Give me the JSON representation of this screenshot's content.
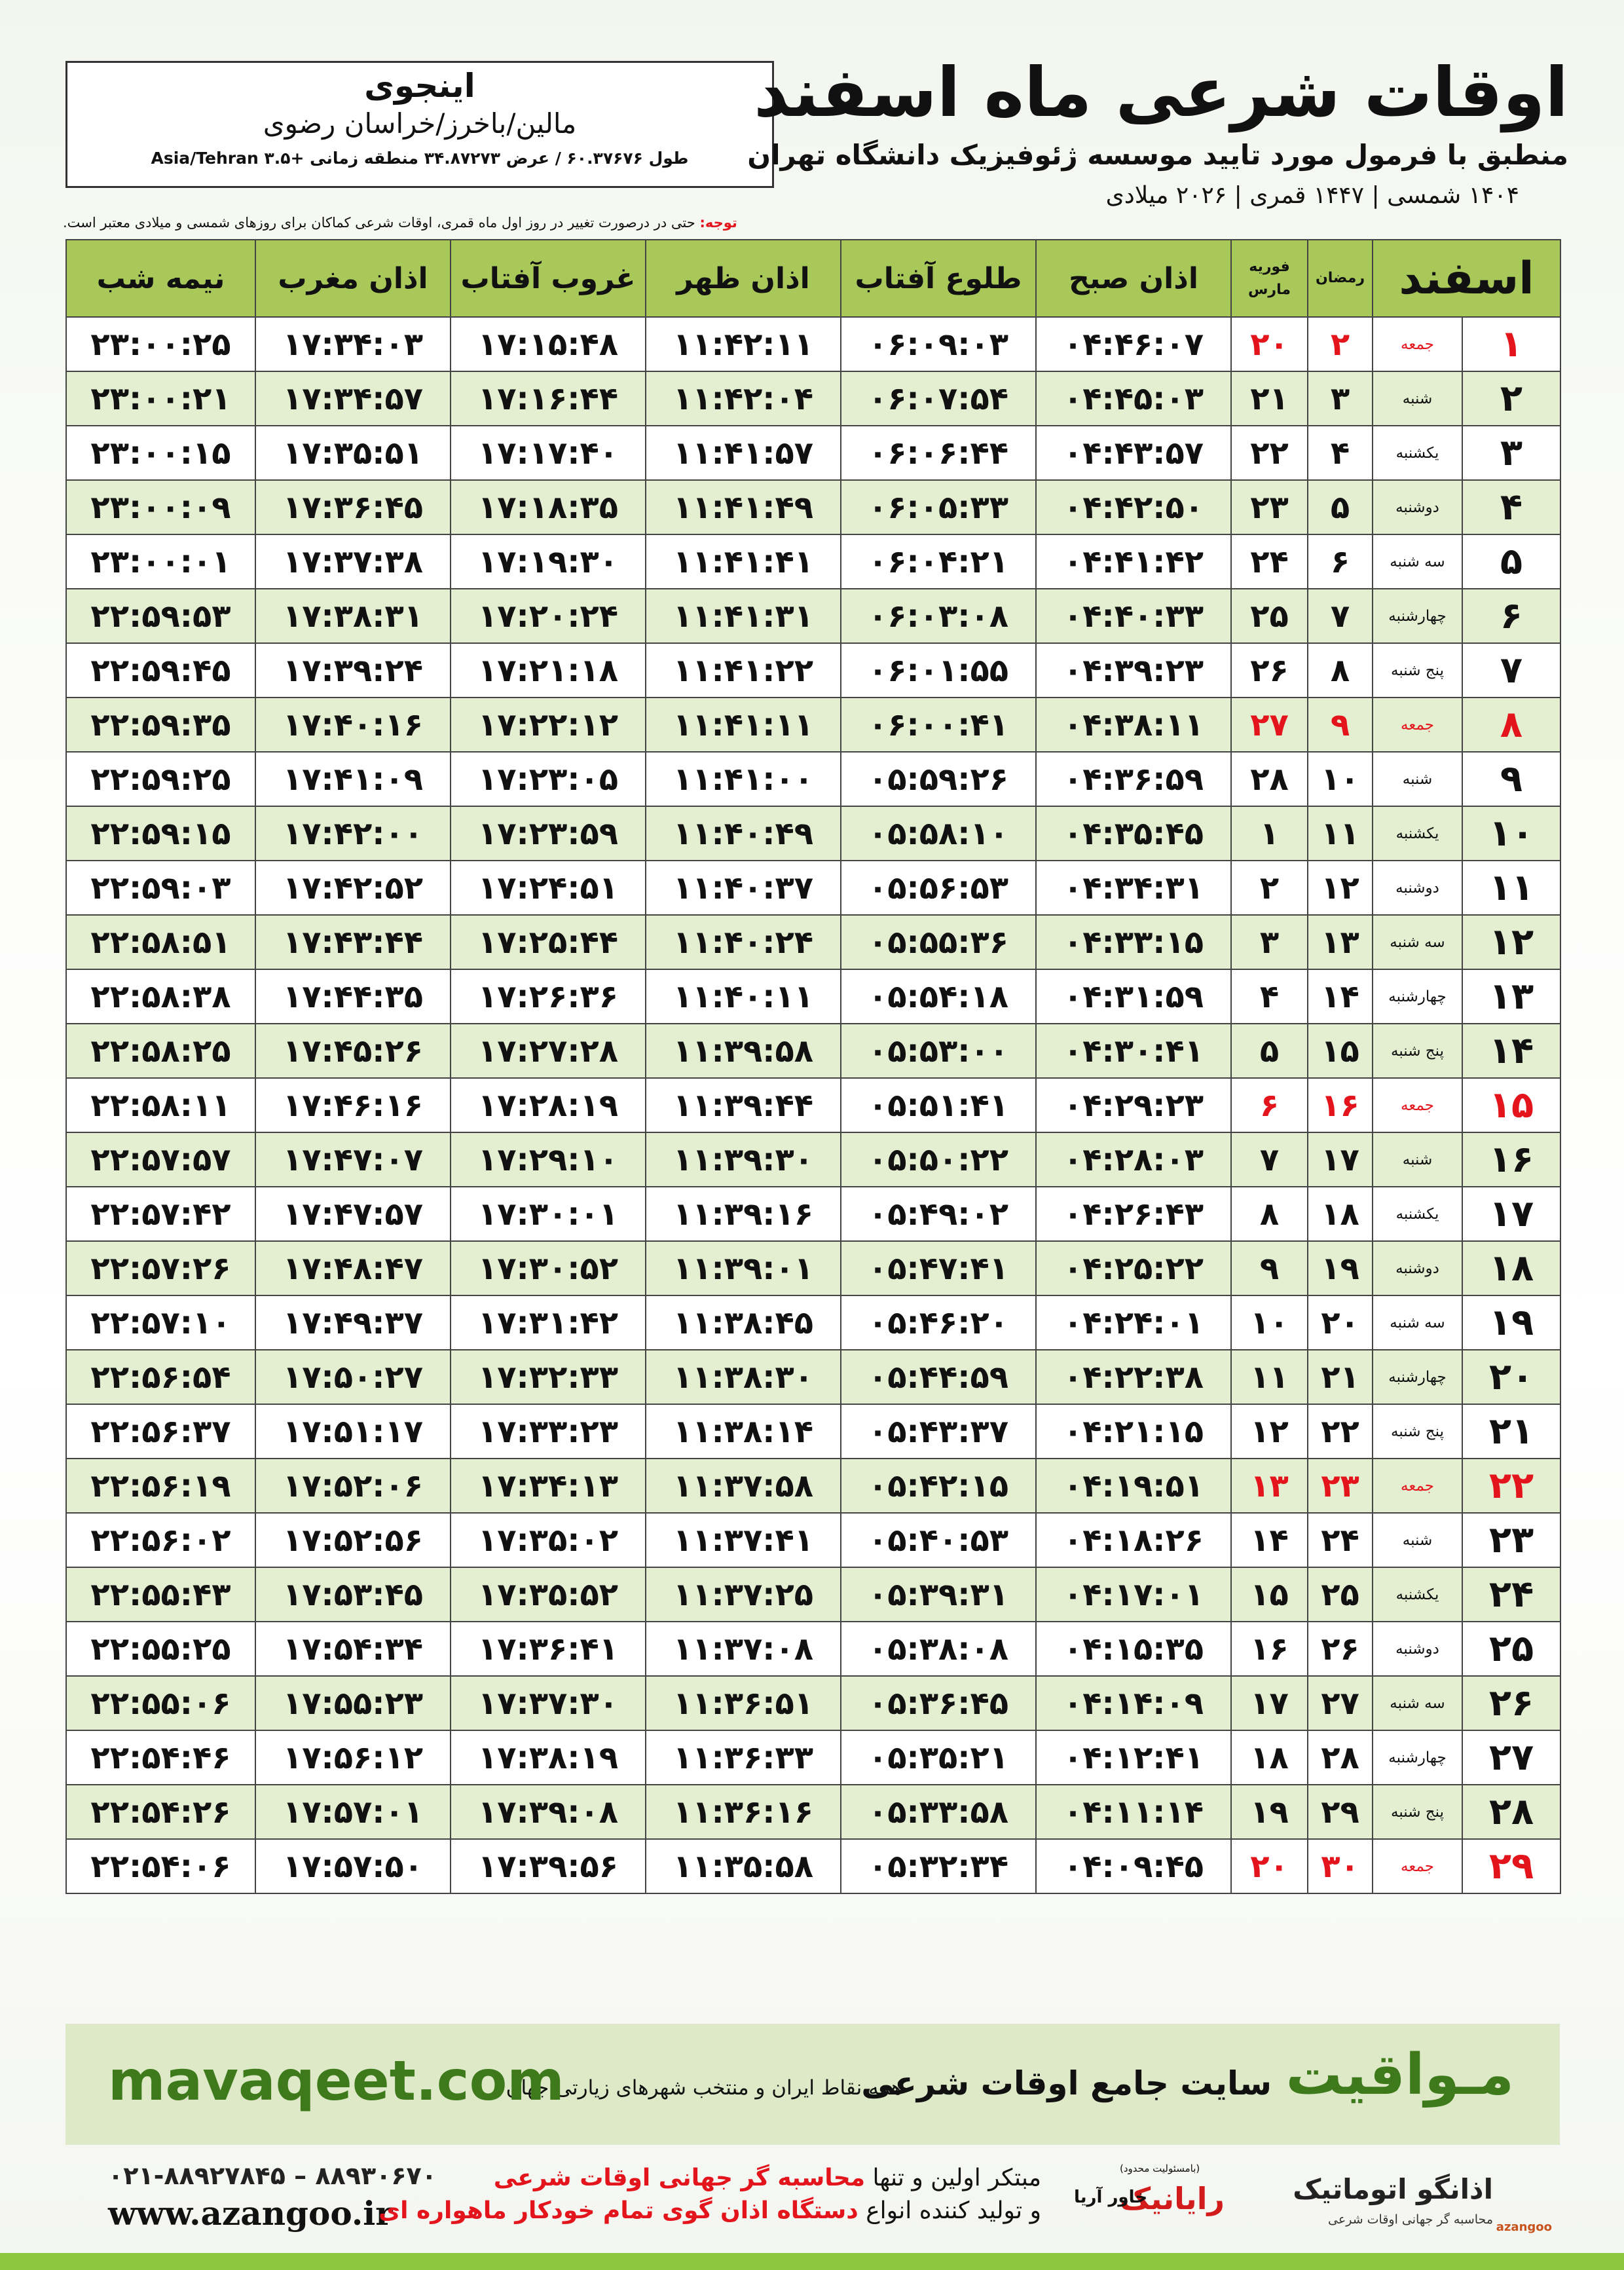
{
  "header": {
    "title": "اوقات شرعی ماه اسفند",
    "subtitle": "منطبق با فرمول مورد تایید موسسه ژئوفیزیک دانشگاه تهران",
    "calendar": "۱۴۰۴ شمسی | ۱۴۴۷ قمری | ۲۰۲۶ میلادی",
    "location": {
      "city": "اینجوی",
      "region": "مالین/باخرز/خراسان رضوی",
      "coords": "طول ۶۰.۳۷۶۷۶ / عرض ۳۴.۸۷۲۷۳ منطقه زمانی +۳.۵ Asia/Tehran"
    },
    "note_label": "توجه:",
    "note": "حتی در درصورت تغییر در روز اول ماه قمری، اوقات شرعی کماکان برای روزهای شمسی و میلادی معتبر است."
  },
  "table": {
    "columns": [
      "اسفند",
      "رمضان",
      "فوریه",
      "مارس",
      "اذان صبح",
      "طلوع آفتاب",
      "اذان ظهر",
      "غروب آفتاب",
      "اذان مغرب",
      "نیمه شب"
    ],
    "rows": [
      {
        "c": [
          "۱",
          "جمعه",
          "۲",
          "۲۰",
          "۰۴:۴۶:۰۷",
          "۰۶:۰۹:۰۳",
          "۱۱:۴۲:۱۱",
          "۱۷:۱۵:۴۸",
          "۱۷:۳۴:۰۳",
          "۲۳:۰۰:۲۵"
        ],
        "color": "#e3141b"
      },
      {
        "c": [
          "۲",
          "شنبه",
          "۳",
          "۲۱",
          "۰۴:۴۵:۰۳",
          "۰۶:۰۷:۵۴",
          "۱۱:۴۲:۰۴",
          "۱۷:۱۶:۴۴",
          "۱۷:۳۴:۵۷",
          "۲۳:۰۰:۲۱"
        ]
      },
      {
        "c": [
          "۳",
          "یکشنبه",
          "۴",
          "۲۲",
          "۰۴:۴۳:۵۷",
          "۰۶:۰۶:۴۴",
          "۱۱:۴۱:۵۷",
          "۱۷:۱۷:۴۰",
          "۱۷:۳۵:۵۱",
          "۲۳:۰۰:۱۵"
        ]
      },
      {
        "c": [
          "۴",
          "دوشنبه",
          "۵",
          "۲۳",
          "۰۴:۴۲:۵۰",
          "۰۶:۰۵:۳۳",
          "۱۱:۴۱:۴۹",
          "۱۷:۱۸:۳۵",
          "۱۷:۳۶:۴۵",
          "۲۳:۰۰:۰۹"
        ]
      },
      {
        "c": [
          "۵",
          "سه شنبه",
          "۶",
          "۲۴",
          "۰۴:۴۱:۴۲",
          "۰۶:۰۴:۲۱",
          "۱۱:۴۱:۴۱",
          "۱۷:۱۹:۳۰",
          "۱۷:۳۷:۳۸",
          "۲۳:۰۰:۰۱"
        ]
      },
      {
        "c": [
          "۶",
          "چهارشنبه",
          "۷",
          "۲۵",
          "۰۴:۴۰:۳۳",
          "۰۶:۰۳:۰۸",
          "۱۱:۴۱:۳۱",
          "۱۷:۲۰:۲۴",
          "۱۷:۳۸:۳۱",
          "۲۲:۵۹:۵۳"
        ]
      },
      {
        "c": [
          "۷",
          "پنج شنبه",
          "۸",
          "۲۶",
          "۰۴:۳۹:۲۳",
          "۰۶:۰۱:۵۵",
          "۱۱:۴۱:۲۲",
          "۱۷:۲۱:۱۸",
          "۱۷:۳۹:۲۴",
          "۲۲:۵۹:۴۵"
        ]
      },
      {
        "c": [
          "۸",
          "جمعه",
          "۹",
          "۲۷",
          "۰۴:۳۸:۱۱",
          "۰۶:۰۰:۴۱",
          "۱۱:۴۱:۱۱",
          "۱۷:۲۲:۱۲",
          "۱۷:۴۰:۱۶",
          "۲۲:۵۹:۳۵"
        ],
        "color": "#e3141b"
      },
      {
        "c": [
          "۹",
          "شنبه",
          "۱۰",
          "۲۸",
          "۰۴:۳۶:۵۹",
          "۰۵:۵۹:۲۶",
          "۱۱:۴۱:۰۰",
          "۱۷:۲۳:۰۵",
          "۱۷:۴۱:۰۹",
          "۲۲:۵۹:۲۵"
        ]
      },
      {
        "c": [
          "۱۰",
          "یکشنبه",
          "۱۱",
          "۱",
          "۰۴:۳۵:۴۵",
          "۰۵:۵۸:۱۰",
          "۱۱:۴۰:۴۹",
          "۱۷:۲۳:۵۹",
          "۱۷:۴۲:۰۰",
          "۲۲:۵۹:۱۵"
        ]
      },
      {
        "c": [
          "۱۱",
          "دوشنبه",
          "۱۲",
          "۲",
          "۰۴:۳۴:۳۱",
          "۰۵:۵۶:۵۳",
          "۱۱:۴۰:۳۷",
          "۱۷:۲۴:۵۱",
          "۱۷:۴۲:۵۲",
          "۲۲:۵۹:۰۳"
        ]
      },
      {
        "c": [
          "۱۲",
          "سه شنبه",
          "۱۳",
          "۳",
          "۰۴:۳۳:۱۵",
          "۰۵:۵۵:۳۶",
          "۱۱:۴۰:۲۴",
          "۱۷:۲۵:۴۴",
          "۱۷:۴۳:۴۴",
          "۲۲:۵۸:۵۱"
        ]
      },
      {
        "c": [
          "۱۳",
          "چهارشنبه",
          "۱۴",
          "۴",
          "۰۴:۳۱:۵۹",
          "۰۵:۵۴:۱۸",
          "۱۱:۴۰:۱۱",
          "۱۷:۲۶:۳۶",
          "۱۷:۴۴:۳۵",
          "۲۲:۵۸:۳۸"
        ]
      },
      {
        "c": [
          "۱۴",
          "پنج شنبه",
          "۱۵",
          "۵",
          "۰۴:۳۰:۴۱",
          "۰۵:۵۳:۰۰",
          "۱۱:۳۹:۵۸",
          "۱۷:۲۷:۲۸",
          "۱۷:۴۵:۲۶",
          "۲۲:۵۸:۲۵"
        ]
      },
      {
        "c": [
          "۱۵",
          "جمعه",
          "۱۶",
          "۶",
          "۰۴:۲۹:۲۳",
          "۰۵:۵۱:۴۱",
          "۱۱:۳۹:۴۴",
          "۱۷:۲۸:۱۹",
          "۱۷:۴۶:۱۶",
          "۲۲:۵۸:۱۱"
        ],
        "color": "#e3141b"
      },
      {
        "c": [
          "۱۶",
          "شنبه",
          "۱۷",
          "۷",
          "۰۴:۲۸:۰۳",
          "۰۵:۵۰:۲۲",
          "۱۱:۳۹:۳۰",
          "۱۷:۲۹:۱۰",
          "۱۷:۴۷:۰۷",
          "۲۲:۵۷:۵۷"
        ]
      },
      {
        "c": [
          "۱۷",
          "یکشنبه",
          "۱۸",
          "۸",
          "۰۴:۲۶:۴۳",
          "۰۵:۴۹:۰۲",
          "۱۱:۳۹:۱۶",
          "۱۷:۳۰:۰۱",
          "۱۷:۴۷:۵۷",
          "۲۲:۵۷:۴۲"
        ]
      },
      {
        "c": [
          "۱۸",
          "دوشنبه",
          "۱۹",
          "۹",
          "۰۴:۲۵:۲۲",
          "۰۵:۴۷:۴۱",
          "۱۱:۳۹:۰۱",
          "۱۷:۳۰:۵۲",
          "۱۷:۴۸:۴۷",
          "۲۲:۵۷:۲۶"
        ]
      },
      {
        "c": [
          "۱۹",
          "سه شنبه",
          "۲۰",
          "۱۰",
          "۰۴:۲۴:۰۱",
          "۰۵:۴۶:۲۰",
          "۱۱:۳۸:۴۵",
          "۱۷:۳۱:۴۲",
          "۱۷:۴۹:۳۷",
          "۲۲:۵۷:۱۰"
        ]
      },
      {
        "c": [
          "۲۰",
          "چهارشنبه",
          "۲۱",
          "۱۱",
          "۰۴:۲۲:۳۸",
          "۰۵:۴۴:۵۹",
          "۱۱:۳۸:۳۰",
          "۱۷:۳۲:۳۳",
          "۱۷:۵۰:۲۷",
          "۲۲:۵۶:۵۴"
        ]
      },
      {
        "c": [
          "۲۱",
          "پنج شنبه",
          "۲۲",
          "۱۲",
          "۰۴:۲۱:۱۵",
          "۰۵:۴۳:۳۷",
          "۱۱:۳۸:۱۴",
          "۱۷:۳۳:۲۳",
          "۱۷:۵۱:۱۷",
          "۲۲:۵۶:۳۷"
        ]
      },
      {
        "c": [
          "۲۲",
          "جمعه",
          "۲۳",
          "۱۳",
          "۰۴:۱۹:۵۱",
          "۰۵:۴۲:۱۵",
          "۱۱:۳۷:۵۸",
          "۱۷:۳۴:۱۳",
          "۱۷:۵۲:۰۶",
          "۲۲:۵۶:۱۹"
        ],
        "color": "#e3141b"
      },
      {
        "c": [
          "۲۳",
          "شنبه",
          "۲۴",
          "۱۴",
          "۰۴:۱۸:۲۶",
          "۰۵:۴۰:۵۳",
          "۱۱:۳۷:۴۱",
          "۱۷:۳۵:۰۲",
          "۱۷:۵۲:۵۶",
          "۲۲:۵۶:۰۲"
        ]
      },
      {
        "c": [
          "۲۴",
          "یکشنبه",
          "۲۵",
          "۱۵",
          "۰۴:۱۷:۰۱",
          "۰۵:۳۹:۳۱",
          "۱۱:۳۷:۲۵",
          "۱۷:۳۵:۵۲",
          "۱۷:۵۳:۴۵",
          "۲۲:۵۵:۴۳"
        ]
      },
      {
        "c": [
          "۲۵",
          "دوشنبه",
          "۲۶",
          "۱۶",
          "۰۴:۱۵:۳۵",
          "۰۵:۳۸:۰۸",
          "۱۱:۳۷:۰۸",
          "۱۷:۳۶:۴۱",
          "۱۷:۵۴:۳۴",
          "۲۲:۵۵:۲۵"
        ]
      },
      {
        "c": [
          "۲۶",
          "سه شنبه",
          "۲۷",
          "۱۷",
          "۰۴:۱۴:۰۹",
          "۰۵:۳۶:۴۵",
          "۱۱:۳۶:۵۱",
          "۱۷:۳۷:۳۰",
          "۱۷:۵۵:۲۳",
          "۲۲:۵۵:۰۶"
        ]
      },
      {
        "c": [
          "۲۷",
          "چهارشنبه",
          "۲۸",
          "۱۸",
          "۰۴:۱۲:۴۱",
          "۰۵:۳۵:۲۱",
          "۱۱:۳۶:۳۳",
          "۱۷:۳۸:۱۹",
          "۱۷:۵۶:۱۲",
          "۲۲:۵۴:۴۶"
        ]
      },
      {
        "c": [
          "۲۸",
          "پنج شنبه",
          "۲۹",
          "۱۹",
          "۰۴:۱۱:۱۴",
          "۰۵:۳۳:۵۸",
          "۱۱:۳۶:۱۶",
          "۱۷:۳۹:۰۸",
          "۱۷:۵۷:۰۱",
          "۲۲:۵۴:۲۶"
        ]
      },
      {
        "c": [
          "۲۹",
          "جمعه",
          "۳۰",
          "۲۰",
          "۰۴:۰۹:۴۵",
          "۰۵:۳۲:۳۴",
          "۱۱:۳۵:۵۸",
          "۱۷:۳۹:۵۶",
          "۱۷:۵۷:۵۰",
          "۲۲:۵۴:۰۶"
        ],
        "color": "#e3141b"
      }
    ]
  },
  "banner": {
    "brand": "مـواقیت",
    "slogan": "سایت جامع اوقات شرعی",
    "tagline": "همه نقاط ایران و منتخب شهرهای زیارتی جهان",
    "url": "mavaqeet.com"
  },
  "footer": {
    "phone": "۰۲۱-۸۸۹۲۷۸۴۵ – ۸۸۹۳۰۶۷۰",
    "website": "www.azangoo.ir",
    "line1": "مبتکر اولین و تنها",
    "line1_highlight": "محاسبه گر جهانی اوقات شرعی",
    "line2": "و تولید کننده انواع",
    "line2_highlight": "دستگاه اذان گوی تمام خودکار ماهواره ای",
    "logo1": "رایانیک",
    "logo1_sub": "خاور آریا",
    "logo1_note": "(باﻣﺴﺌﻮﻟﯿﺖ ﻣﺤﺪود)",
    "logo2": "اذانگو اتوماتیک",
    "logo2_sub": "محاسبه گر جهانی اوقات شرعی",
    "logo2_en": "azangoo"
  }
}
